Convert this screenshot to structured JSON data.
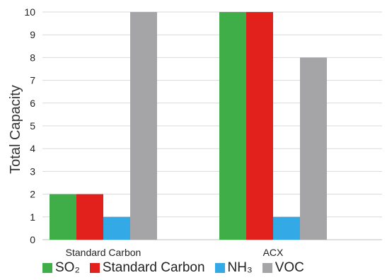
{
  "chart_data": {
    "type": "bar",
    "categories": [
      "Standard Carbon",
      "ACX"
    ],
    "series": [
      {
        "name": "SO₂",
        "color": "#3fae49",
        "values": [
          2,
          10
        ]
      },
      {
        "name": "Standard Carbon",
        "color": "#e3211c",
        "values": [
          2,
          10
        ]
      },
      {
        "name": "NH₃",
        "color": "#33a9e6",
        "values": [
          1,
          1
        ]
      },
      {
        "name": "VOC",
        "color": "#a5a5a8",
        "values": [
          10,
          8
        ]
      }
    ],
    "ylabel": "Total Capacity",
    "xlabel": "",
    "ylim": [
      0,
      10
    ],
    "yticks": [
      0,
      1,
      2,
      3,
      4,
      5,
      6,
      7,
      8,
      9,
      10
    ],
    "grid": true,
    "legend_position": "bottom"
  }
}
